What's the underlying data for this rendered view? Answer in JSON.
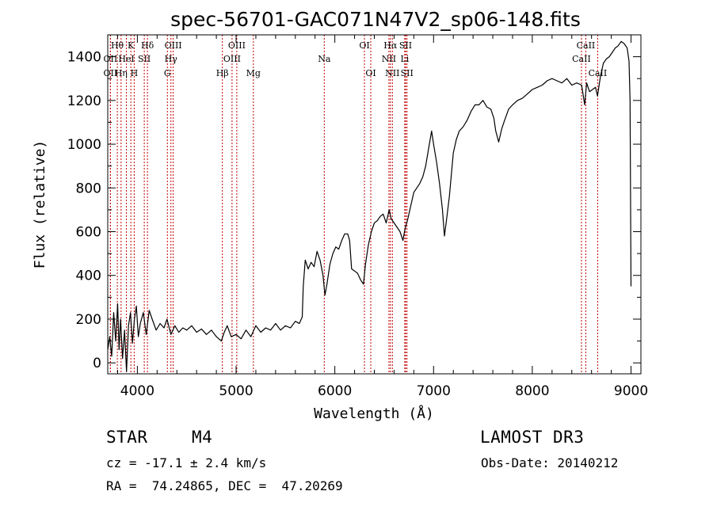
{
  "chart_data": {
    "type": "line",
    "title": "spec-56701-GAC071N47V2_sp06-148.fits",
    "xlabel": "Wavelength (Å)",
    "ylabel": "Flux (relative)",
    "xlim": [
      3700,
      9100
    ],
    "ylim": [
      -50,
      1500
    ],
    "x_ticks": [
      4000,
      5000,
      6000,
      7000,
      8000,
      9000
    ],
    "y_ticks": [
      0,
      200,
      400,
      600,
      800,
      1000,
      1200,
      1400
    ],
    "grid": false,
    "series": [
      {
        "name": "spectrum",
        "points": [
          [
            3700,
            60
          ],
          [
            3720,
            120
          ],
          [
            3740,
            30
          ],
          [
            3760,
            230
          ],
          [
            3780,
            100
          ],
          [
            3800,
            270
          ],
          [
            3815,
            60
          ],
          [
            3830,
            200
          ],
          [
            3850,
            20
          ],
          [
            3870,
            150
          ],
          [
            3890,
            -40
          ],
          [
            3910,
            170
          ],
          [
            3930,
            230
          ],
          [
            3950,
            90
          ],
          [
            3970,
            200
          ],
          [
            3990,
            260
          ],
          [
            4010,
            120
          ],
          [
            4030,
            180
          ],
          [
            4060,
            230
          ],
          [
            4090,
            130
          ],
          [
            4120,
            240
          ],
          [
            4150,
            200
          ],
          [
            4190,
            150
          ],
          [
            4230,
            180
          ],
          [
            4270,
            160
          ],
          [
            4300,
            200
          ],
          [
            4340,
            130
          ],
          [
            4380,
            170
          ],
          [
            4420,
            140
          ],
          [
            4460,
            160
          ],
          [
            4500,
            150
          ],
          [
            4550,
            170
          ],
          [
            4600,
            140
          ],
          [
            4650,
            155
          ],
          [
            4700,
            130
          ],
          [
            4750,
            150
          ],
          [
            4800,
            120
          ],
          [
            4850,
            100
          ],
          [
            4880,
            140
          ],
          [
            4910,
            170
          ],
          [
            4950,
            120
          ],
          [
            5000,
            130
          ],
          [
            5050,
            110
          ],
          [
            5100,
            150
          ],
          [
            5150,
            120
          ],
          [
            5200,
            170
          ],
          [
            5250,
            140
          ],
          [
            5300,
            160
          ],
          [
            5350,
            150
          ],
          [
            5400,
            180
          ],
          [
            5450,
            150
          ],
          [
            5500,
            170
          ],
          [
            5550,
            160
          ],
          [
            5600,
            190
          ],
          [
            5640,
            180
          ],
          [
            5670,
            210
          ],
          [
            5680,
            350
          ],
          [
            5700,
            470
          ],
          [
            5730,
            430
          ],
          [
            5760,
            460
          ],
          [
            5790,
            440
          ],
          [
            5820,
            510
          ],
          [
            5850,
            470
          ],
          [
            5880,
            400
          ],
          [
            5900,
            310
          ],
          [
            5920,
            360
          ],
          [
            5950,
            450
          ],
          [
            5980,
            500
          ],
          [
            6010,
            530
          ],
          [
            6040,
            520
          ],
          [
            6070,
            560
          ],
          [
            6100,
            590
          ],
          [
            6130,
            590
          ],
          [
            6150,
            560
          ],
          [
            6170,
            430
          ],
          [
            6200,
            420
          ],
          [
            6230,
            410
          ],
          [
            6260,
            380
          ],
          [
            6290,
            360
          ],
          [
            6310,
            450
          ],
          [
            6340,
            540
          ],
          [
            6370,
            600
          ],
          [
            6400,
            640
          ],
          [
            6430,
            650
          ],
          [
            6460,
            670
          ],
          [
            6490,
            680
          ],
          [
            6520,
            640
          ],
          [
            6550,
            700
          ],
          [
            6570,
            660
          ],
          [
            6600,
            640
          ],
          [
            6630,
            620
          ],
          [
            6660,
            600
          ],
          [
            6690,
            560
          ],
          [
            6710,
            610
          ],
          [
            6740,
            660
          ],
          [
            6770,
            720
          ],
          [
            6800,
            780
          ],
          [
            6830,
            800
          ],
          [
            6860,
            820
          ],
          [
            6890,
            850
          ],
          [
            6920,
            900
          ],
          [
            6950,
            980
          ],
          [
            6980,
            1060
          ],
          [
            7000,
            1000
          ],
          [
            7030,
            920
          ],
          [
            7060,
            820
          ],
          [
            7090,
            700
          ],
          [
            7110,
            580
          ],
          [
            7130,
            650
          ],
          [
            7160,
            760
          ],
          [
            7180,
            860
          ],
          [
            7200,
            960
          ],
          [
            7230,
            1020
          ],
          [
            7260,
            1060
          ],
          [
            7300,
            1080
          ],
          [
            7340,
            1110
          ],
          [
            7380,
            1150
          ],
          [
            7420,
            1180
          ],
          [
            7460,
            1180
          ],
          [
            7500,
            1200
          ],
          [
            7540,
            1170
          ],
          [
            7580,
            1160
          ],
          [
            7610,
            1120
          ],
          [
            7630,
            1060
          ],
          [
            7660,
            1010
          ],
          [
            7690,
            1070
          ],
          [
            7720,
            1110
          ],
          [
            7760,
            1160
          ],
          [
            7800,
            1180
          ],
          [
            7850,
            1200
          ],
          [
            7900,
            1210
          ],
          [
            7950,
            1230
          ],
          [
            8000,
            1250
          ],
          [
            8050,
            1260
          ],
          [
            8100,
            1270
          ],
          [
            8150,
            1290
          ],
          [
            8200,
            1300
          ],
          [
            8250,
            1290
          ],
          [
            8300,
            1280
          ],
          [
            8350,
            1300
          ],
          [
            8400,
            1270
          ],
          [
            8450,
            1280
          ],
          [
            8500,
            1270
          ],
          [
            8530,
            1180
          ],
          [
            8550,
            1280
          ],
          [
            8580,
            1240
          ],
          [
            8610,
            1250
          ],
          [
            8640,
            1260
          ],
          [
            8660,
            1220
          ],
          [
            8690,
            1310
          ],
          [
            8720,
            1370
          ],
          [
            8750,
            1390
          ],
          [
            8780,
            1400
          ],
          [
            8810,
            1420
          ],
          [
            8840,
            1440
          ],
          [
            8870,
            1450
          ],
          [
            8900,
            1470
          ],
          [
            8930,
            1460
          ],
          [
            8960,
            1440
          ],
          [
            8980,
            1380
          ],
          [
            8990,
            1200
          ],
          [
            9000,
            350
          ]
        ]
      }
    ],
    "spectral_lines": [
      {
        "label": "Hθ",
        "wave": 3797,
        "row": 1
      },
      {
        "label": "OII",
        "wave": 3727,
        "row": 2
      },
      {
        "label": "OII",
        "wave": 3727,
        "row": 3
      },
      {
        "label": "Hη",
        "wave": 3835,
        "row": 3
      },
      {
        "label": "HeI",
        "wave": 3889,
        "row": 2
      },
      {
        "label": "K",
        "wave": 3934,
        "row": 1
      },
      {
        "label": "H",
        "wave": 3968,
        "row": 3
      },
      {
        "label": "SII",
        "wave": 4070,
        "row": 2
      },
      {
        "label": "Hδ",
        "wave": 4102,
        "row": 1
      },
      {
        "label": "OIII",
        "wave": 4363,
        "row": 1
      },
      {
        "label": "Hγ",
        "wave": 4340,
        "row": 2
      },
      {
        "label": "G",
        "wave": 4304,
        "row": 3
      },
      {
        "label": "Hβ",
        "wave": 4861,
        "row": 3
      },
      {
        "label": "OIII",
        "wave": 4959,
        "row": 2
      },
      {
        "label": "OIII",
        "wave": 5007,
        "row": 1
      },
      {
        "label": "Mg",
        "wave": 5175,
        "row": 3
      },
      {
        "label": "Na",
        "wave": 5893,
        "row": 2
      },
      {
        "label": "OI",
        "wave": 6300,
        "row": 1
      },
      {
        "label": "OI",
        "wave": 6364,
        "row": 3
      },
      {
        "label": "NII",
        "wave": 6548,
        "row": 2
      },
      {
        "label": "Hα",
        "wave": 6563,
        "row": 1
      },
      {
        "label": "NII",
        "wave": 6583,
        "row": 3
      },
      {
        "label": "SII",
        "wave": 6717,
        "row": 1
      },
      {
        "label": "SII",
        "wave": 6731,
        "row": 3
      },
      {
        "label": "Li",
        "wave": 6708,
        "row": 2
      },
      {
        "label": "CaII",
        "wave": 8498,
        "row": 2
      },
      {
        "label": "CaII",
        "wave": 8542,
        "row": 1
      },
      {
        "label": "CaII",
        "wave": 8662,
        "row": 3
      }
    ]
  },
  "info": {
    "object_class": "STAR",
    "subclass": "M4",
    "survey": "LAMOST DR3",
    "redshift": "cz = -17.1 ± 2.4 km/s",
    "obs_date": "Obs-Date: 20140212",
    "coords": "RA =  74.24865, DEC =  47.20269"
  }
}
